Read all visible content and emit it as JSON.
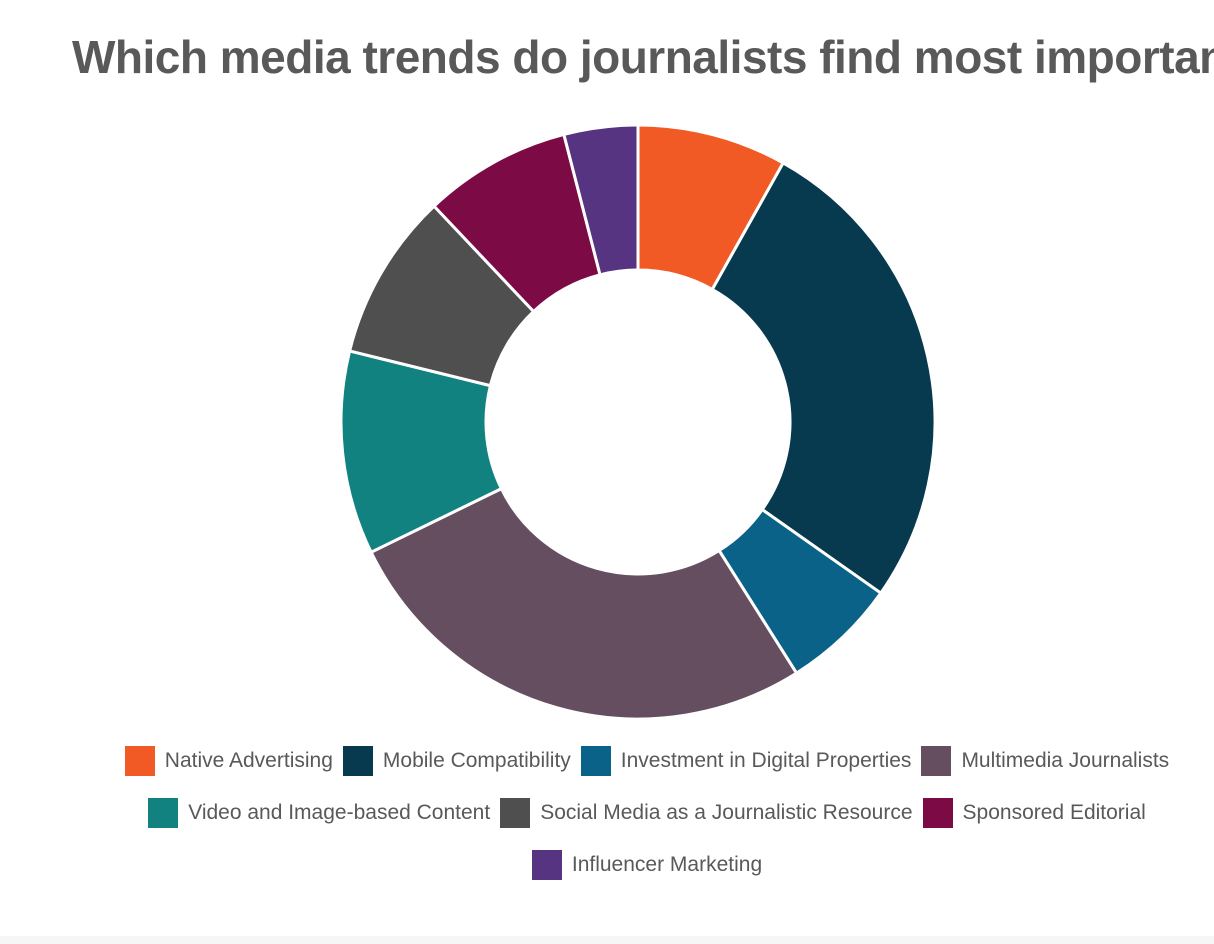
{
  "chart_data": {
    "type": "pie",
    "donut": true,
    "title": "Which media trends do journalists find most important?",
    "categories": [
      "Native Advertising",
      "Mobile Compatibility",
      "Investment in Digital Properties",
      "Multimedia Journalists",
      "Video and Image-based Content",
      "Social Media as a Journalistic Resource",
      "Sponsored Editorial",
      "Influencer Marketing"
    ],
    "values": [
      8.3,
      27.2,
      6.4,
      27.3,
      11.3,
      9.3,
      8.2,
      4.1
    ],
    "colors": [
      "#F15A24",
      "#073A4F",
      "#0B6288",
      "#654E5F",
      "#128280",
      "#4F4F4F",
      "#7C0A44",
      "#573482"
    ],
    "legend_position": "bottom"
  }
}
